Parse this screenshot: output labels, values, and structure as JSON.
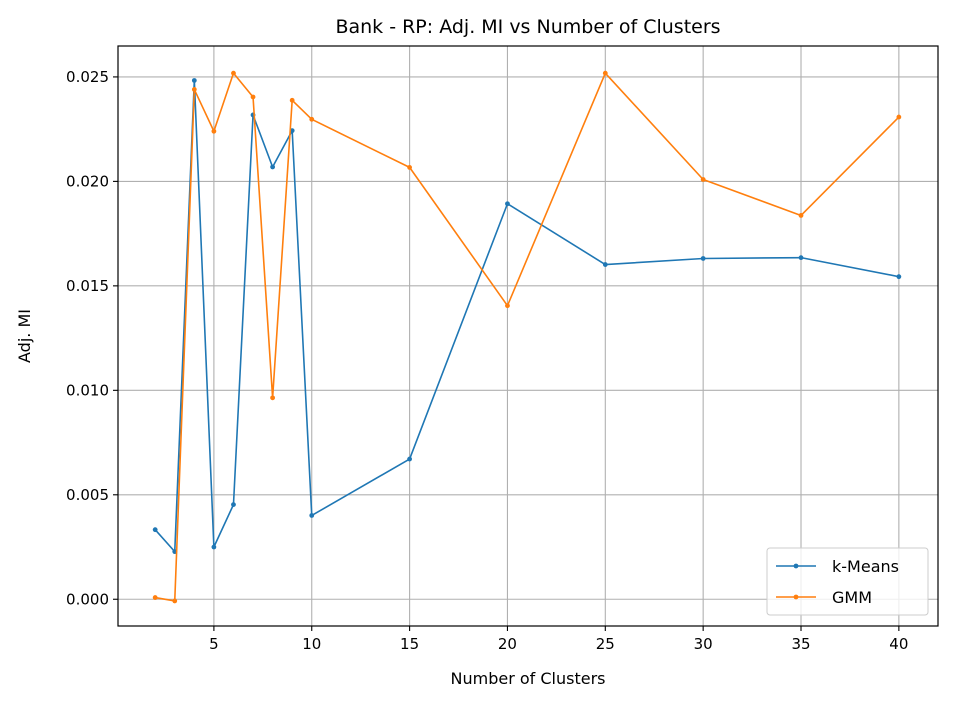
{
  "chart_data": {
    "type": "line",
    "title": "Bank - RP: Adj. MI vs Number of Clusters",
    "xlabel": "Number of Clusters",
    "ylabel": "Adj. MI",
    "xlim": [
      0.1,
      42.0
    ],
    "ylim": [
      -0.00128,
      0.02648
    ],
    "xticks": [
      5,
      10,
      15,
      20,
      25,
      30,
      35,
      40
    ],
    "xtick_labels": [
      "5",
      "10",
      "15",
      "20",
      "25",
      "30",
      "35",
      "40"
    ],
    "yticks": [
      0.0,
      0.005,
      0.01,
      0.015,
      0.02,
      0.025
    ],
    "ytick_labels": [
      "0.000",
      "0.005",
      "0.010",
      "0.015",
      "0.020",
      "0.025"
    ],
    "grid": true,
    "legend_position": "lower-right",
    "x": [
      2,
      3,
      4,
      5,
      6,
      7,
      8,
      9,
      10,
      15,
      20,
      25,
      30,
      35,
      40
    ],
    "series": [
      {
        "name": "k-Means",
        "color": "#1f77b4",
        "values": [
          0.00333,
          0.00228,
          0.02483,
          0.0025,
          0.00453,
          0.02318,
          0.02069,
          0.02243,
          0.00401,
          0.00671,
          0.01893,
          0.01602,
          0.01631,
          0.01635,
          0.01544
        ]
      },
      {
        "name": "GMM",
        "color": "#ff7f0e",
        "values": [
          8e-05,
          -8e-05,
          0.0244,
          0.0224,
          0.02518,
          0.02404,
          0.00964,
          0.02388,
          0.02297,
          0.02067,
          0.01405,
          0.02518,
          0.02009,
          0.01837,
          0.02308
        ]
      }
    ]
  }
}
